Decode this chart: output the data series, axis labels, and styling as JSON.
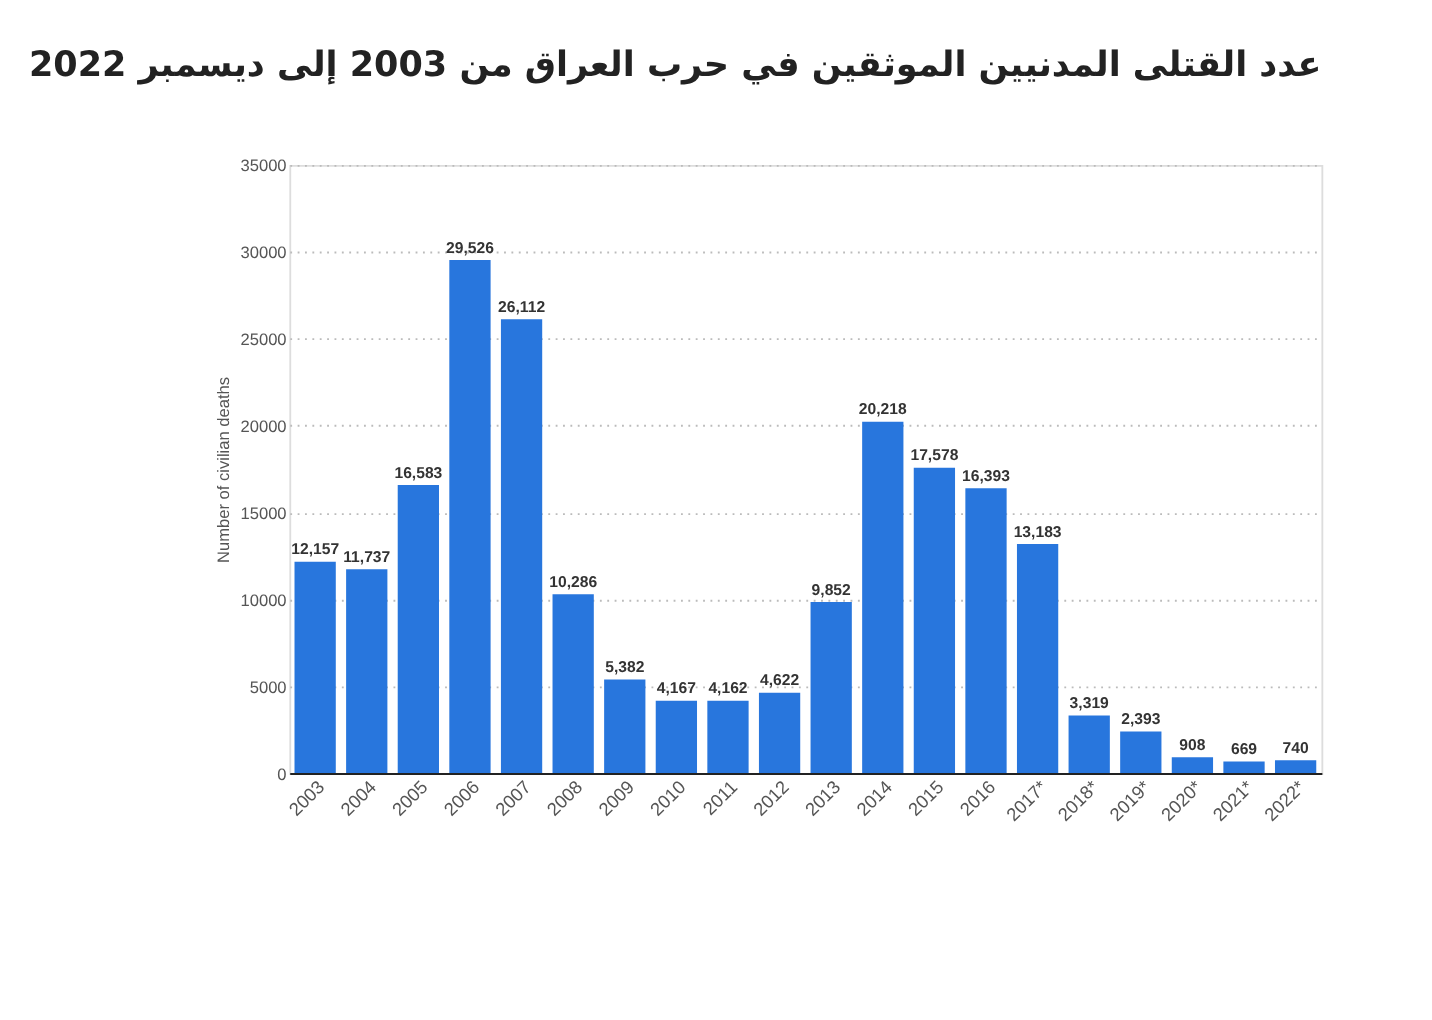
{
  "chart_data": {
    "type": "bar",
    "title": "عدد القتلى المدنيين الموثقين في حرب العراق من 2003 إلى ديسمبر 2022",
    "ylabel": "Number of civilian deaths",
    "categories": [
      "2003",
      "2004",
      "2005",
      "2006",
      "2007",
      "2008",
      "2009",
      "2010",
      "2011",
      "2012",
      "2013",
      "2014",
      "2015",
      "2016",
      "2017*",
      "2018*",
      "2019*",
      "2020*",
      "2021*",
      "2022*"
    ],
    "values": [
      12157,
      11737,
      16583,
      29526,
      26112,
      10286,
      5382,
      4167,
      4162,
      4622,
      9852,
      20218,
      17578,
      16393,
      13183,
      3319,
      2393,
      908,
      669,
      740
    ],
    "value_labels": [
      "12,157",
      "11,737",
      "16,583",
      "29,526",
      "26,112",
      "10,286",
      "5,382",
      "4,167",
      "4,162",
      "4,622",
      "9,852",
      "20,218",
      "17,578",
      "16,393",
      "13,183",
      "3,319",
      "2,393",
      "908",
      "669",
      "740"
    ],
    "color": "#2876dd",
    "ylim": [
      0,
      35000
    ],
    "yticks": [
      0,
      5000,
      10000,
      15000,
      20000,
      25000,
      30000,
      35000
    ],
    "grid": "y"
  }
}
